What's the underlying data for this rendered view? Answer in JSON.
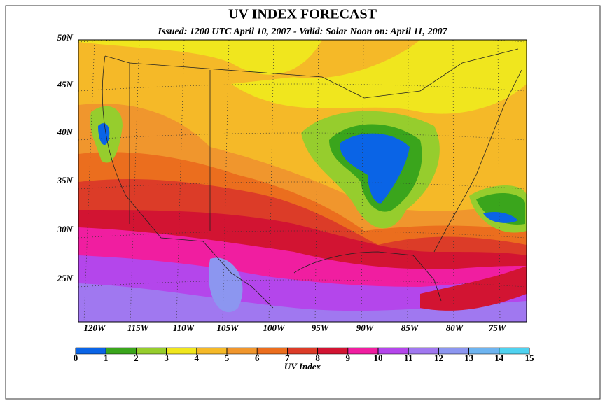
{
  "header": {
    "title": "UV INDEX FORECAST",
    "subtitle": "Issued: 1200 UTC April 10, 2007  -  Valid: Solar Noon on: April 11, 2007"
  },
  "map": {
    "lat_labels": [
      "50N",
      "45N",
      "40N",
      "35N",
      "30N",
      "25N"
    ],
    "lon_labels": [
      "120W",
      "115W",
      "110W",
      "105W",
      "100W",
      "95W",
      "90W",
      "85W",
      "80W",
      "75W"
    ]
  },
  "colorbar": {
    "ticks": [
      0,
      1,
      2,
      3,
      4,
      5,
      6,
      7,
      8,
      9,
      10,
      11,
      12,
      13,
      14,
      15
    ],
    "colors": [
      "#0a64e6",
      "#3aa51c",
      "#96cd2d",
      "#f0e61e",
      "#f5b928",
      "#f0962d",
      "#eb6e1e",
      "#dc3c28",
      "#d21432",
      "#f01ea0",
      "#b446eb",
      "#a078f0",
      "#8c96f0",
      "#6eb4f0",
      "#50d2f0"
    ],
    "label": "UV Index"
  }
}
